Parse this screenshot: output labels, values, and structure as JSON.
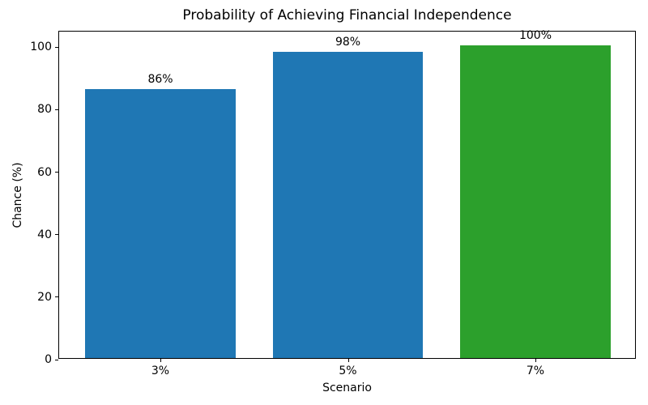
{
  "chart_data": {
    "type": "bar",
    "title": "Probability of Achieving Financial Independence",
    "xlabel": "Scenario",
    "ylabel": "Chance (%)",
    "categories": [
      "3%",
      "5%",
      "7%"
    ],
    "values": [
      86,
      98,
      100
    ],
    "bar_labels": [
      "86%",
      "98%",
      "100%"
    ],
    "bar_colors": [
      "#1f77b4",
      "#1f77b4",
      "#2ca02c"
    ],
    "ylim": [
      0,
      105
    ],
    "yticks": [
      0,
      20,
      40,
      60,
      80,
      100
    ],
    "grid": false,
    "legend_position": "none",
    "background_color": "#ffffff",
    "axis_color": "#000000",
    "bar_width_fraction": 0.8
  }
}
